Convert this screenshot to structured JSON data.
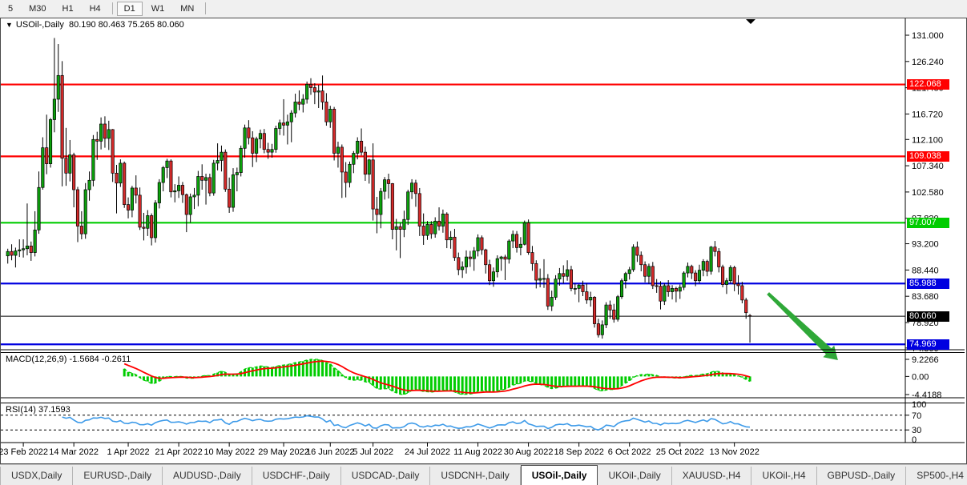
{
  "toolbar": {
    "timeframes": [
      "5",
      "M30",
      "H1",
      "H4",
      "D1",
      "W1",
      "MN"
    ],
    "active_timeframe": "D1"
  },
  "chart": {
    "symbol_title": "USOil-,Daily",
    "ohlc_text": "80.190 80.463 75.265 80.060",
    "dropdown_icon": "▼"
  },
  "macd": {
    "label": "MACD(12,26,9)",
    "values_text": "-1.5684 -0.2611",
    "axis_labels": [
      "9.2266",
      "0.00",
      "-4.4188"
    ],
    "fast": 12,
    "slow": 26,
    "signal": 9
  },
  "rsi": {
    "label": "RSI(14)",
    "value_text": "37.1593",
    "axis_labels": [
      "100",
      "70",
      "30",
      "0"
    ],
    "levels": [
      70,
      30
    ],
    "period": 14
  },
  "tabs": {
    "items": [
      "USDX,Daily",
      "EURUSD-,Daily",
      "AUDUSD-,Daily",
      "USDCHF-,Daily",
      "USDCAD-,Daily",
      "USDCNH-,Daily",
      "USOil-,Daily",
      "UKOil-,Daily",
      "XAUUSD-,H4",
      "UKOil-,H4",
      "GBPUSD-,Daily",
      "SP500-,H4"
    ],
    "active": "USOil-,Daily",
    "scroll_left_icon": "◄",
    "scroll_right_icon": "►"
  },
  "colors": {
    "bull": "#0ca10c",
    "bear": "#d42a2a",
    "wick": "#000000",
    "macd_hist": "#00cc00",
    "macd_line": "#00cc00",
    "macd_signal": "#ff0000",
    "rsi_line": "#3e9be9",
    "arrow": "#2fa838",
    "level_red": "#ff0000",
    "level_green": "#00cc00",
    "level_blue": "#0000e0",
    "level_black": "#000000"
  },
  "chart_data": {
    "type": "candlestick",
    "symbol": "USOil",
    "timeframe": "Daily",
    "current_bar": {
      "open": 80.19,
      "high": 80.463,
      "low": 75.265,
      "close": 80.06
    },
    "y_ticks": [
      "131.000",
      "126.240",
      "121.480",
      "116.720",
      "112.100",
      "107.340",
      "102.580",
      "97.820",
      "93.200",
      "88.440",
      "83.680",
      "78.920",
      "74.300"
    ],
    "horizontal_levels": [
      {
        "price": 122.068,
        "label": "122.068",
        "color_key": "level_red"
      },
      {
        "price": 109.038,
        "label": "109.038",
        "color_key": "level_red"
      },
      {
        "price": 97.007,
        "label": "97.007",
        "color_key": "level_green"
      },
      {
        "price": 85.988,
        "label": "85.988",
        "color_key": "level_blue"
      },
      {
        "price": 80.06,
        "label": "80.060",
        "color_key": "level_black"
      },
      {
        "price": 74.969,
        "label": "74.969",
        "color_key": "level_blue"
      }
    ],
    "x_labels": [
      {
        "text": "23 Feb 2022",
        "index": 4
      },
      {
        "text": "14 Mar 2022",
        "index": 17
      },
      {
        "text": "1 Apr 2022",
        "index": 31
      },
      {
        "text": "21 Apr 2022",
        "index": 44
      },
      {
        "text": "10 May 2022",
        "index": 57
      },
      {
        "text": "29 May 2022",
        "index": 71
      },
      {
        "text": "16 Jun 2022",
        "index": 83
      },
      {
        "text": "5 Jul 2022",
        "index": 94
      },
      {
        "text": "24 Jul 2022",
        "index": 108
      },
      {
        "text": "11 Aug 2022",
        "index": 121
      },
      {
        "text": "30 Aug 2022",
        "index": 134
      },
      {
        "text": "18 Sep 2022",
        "index": 147
      },
      {
        "text": "6 Oct 2022",
        "index": 160
      },
      {
        "text": "25 Oct 2022",
        "index": 173
      },
      {
        "text": "13 Nov 2022",
        "index": 187
      }
    ],
    "arrow_annotation": {
      "x1_bar": 196,
      "price1": 84.2,
      "x2_bar": 214,
      "price2": 72.1
    },
    "candles": [
      [
        91.0,
        92.3,
        89.6,
        91.8
      ],
      [
        91.8,
        93.1,
        90.2,
        91.1
      ],
      [
        91.1,
        92.5,
        88.9,
        91.9
      ],
      [
        91.9,
        94.0,
        90.8,
        92.1
      ],
      [
        92.1,
        94.0,
        90.7,
        92.3
      ],
      [
        92.3,
        100.5,
        91.1,
        92.8
      ],
      [
        92.8,
        93.6,
        90.1,
        91.6
      ],
      [
        91.6,
        99.1,
        90.9,
        95.7
      ],
      [
        95.7,
        106.3,
        95.0,
        103.4
      ],
      [
        103.4,
        112.5,
        103.0,
        110.6
      ],
      [
        110.6,
        116.6,
        105.8,
        107.7
      ],
      [
        107.7,
        116.0,
        107.0,
        115.7
      ],
      [
        115.7,
        130.5,
        113.4,
        119.4
      ],
      [
        119.4,
        129.4,
        117.1,
        123.7
      ],
      [
        123.7,
        126.3,
        103.6,
        108.7
      ],
      [
        108.7,
        114.2,
        103.7,
        106.0
      ],
      [
        106.0,
        112.0,
        104.5,
        109.3
      ],
      [
        109.3,
        109.7,
        99.8,
        103.0
      ],
      [
        103.0,
        103.5,
        93.5,
        96.4
      ],
      [
        96.4,
        99.1,
        94.0,
        95.0
      ],
      [
        95.0,
        104.2,
        94.1,
        103.0
      ],
      [
        103.0,
        106.3,
        101.0,
        104.7
      ],
      [
        104.7,
        112.9,
        103.6,
        112.1
      ],
      [
        112.1,
        113.5,
        108.4,
        111.8
      ],
      [
        111.8,
        116.1,
        110.3,
        114.9
      ],
      [
        114.9,
        116.3,
        110.6,
        112.3
      ],
      [
        112.3,
        115.5,
        110.2,
        113.9
      ],
      [
        113.9,
        114.0,
        104.4,
        106.0
      ],
      [
        106.0,
        107.5,
        98.7,
        104.2
      ],
      [
        104.2,
        108.5,
        103.5,
        107.8
      ],
      [
        107.8,
        108.1,
        99.7,
        100.3
      ],
      [
        100.3,
        101.6,
        97.8,
        99.3
      ],
      [
        99.3,
        103.7,
        98.0,
        103.3
      ],
      [
        103.3,
        105.6,
        100.5,
        102.0
      ],
      [
        102.0,
        103.4,
        95.7,
        96.2
      ],
      [
        96.2,
        98.8,
        93.8,
        96.0
      ],
      [
        96.0,
        99.3,
        94.6,
        98.3
      ],
      [
        98.3,
        98.7,
        92.9,
        94.3
      ],
      [
        94.3,
        101.1,
        93.4,
        100.6
      ],
      [
        100.6,
        104.9,
        99.6,
        104.3
      ],
      [
        104.3,
        107.3,
        102.7,
        107.0
      ],
      [
        107.0,
        108.6,
        105.1,
        108.2
      ],
      [
        108.2,
        108.5,
        101.6,
        102.6
      ],
      [
        102.6,
        104.0,
        100.7,
        102.8
      ],
      [
        102.8,
        105.4,
        101.5,
        103.8
      ],
      [
        103.8,
        104.4,
        100.6,
        102.1
      ],
      [
        102.1,
        102.3,
        95.3,
        98.5
      ],
      [
        98.5,
        102.3,
        97.0,
        101.7
      ],
      [
        101.7,
        103.3,
        99.5,
        102.0
      ],
      [
        102.0,
        106.4,
        100.0,
        105.4
      ],
      [
        105.4,
        107.6,
        103.0,
        104.7
      ],
      [
        104.7,
        105.9,
        100.3,
        105.2
      ],
      [
        105.2,
        105.9,
        101.8,
        102.4
      ],
      [
        102.4,
        108.4,
        101.9,
        107.8
      ],
      [
        107.8,
        111.4,
        106.5,
        108.3
      ],
      [
        108.3,
        111.0,
        106.3,
        109.8
      ],
      [
        109.8,
        110.3,
        102.6,
        103.1
      ],
      [
        103.1,
        105.2,
        98.8,
        99.8
      ],
      [
        99.8,
        106.9,
        99.0,
        105.7
      ],
      [
        105.7,
        107.0,
        102.7,
        106.1
      ],
      [
        106.1,
        111.0,
        105.4,
        110.5
      ],
      [
        110.5,
        114.8,
        108.8,
        114.2
      ],
      [
        114.2,
        115.6,
        111.2,
        112.4
      ],
      [
        112.4,
        113.6,
        107.1,
        109.6
      ],
      [
        109.6,
        112.6,
        108.0,
        112.2
      ],
      [
        112.2,
        113.9,
        110.5,
        113.2
      ],
      [
        113.2,
        114.0,
        109.6,
        110.3
      ],
      [
        110.3,
        111.5,
        108.6,
        109.8
      ],
      [
        109.8,
        111.3,
        108.8,
        110.3
      ],
      [
        110.3,
        114.6,
        109.7,
        114.1
      ],
      [
        114.1,
        115.7,
        112.9,
        115.1
      ],
      [
        115.1,
        119.4,
        112.8,
        114.7
      ],
      [
        114.7,
        116.6,
        111.2,
        115.3
      ],
      [
        115.3,
        117.4,
        111.6,
        116.9
      ],
      [
        116.9,
        120.4,
        116.1,
        118.9
      ],
      [
        118.9,
        121.0,
        117.4,
        118.5
      ],
      [
        118.5,
        120.3,
        117.0,
        119.4
      ],
      [
        119.4,
        122.6,
        118.6,
        122.1
      ],
      [
        122.1,
        123.2,
        120.2,
        121.5
      ],
      [
        121.5,
        122.3,
        118.5,
        120.7
      ],
      [
        120.7,
        122.0,
        117.8,
        120.9
      ],
      [
        120.9,
        123.7,
        117.5,
        118.9
      ],
      [
        118.9,
        120.5,
        114.6,
        115.3
      ],
      [
        115.3,
        118.2,
        114.2,
        117.6
      ],
      [
        117.6,
        118.0,
        108.3,
        109.6
      ],
      [
        109.6,
        111.7,
        107.0,
        110.7
      ],
      [
        110.7,
        111.2,
        101.5,
        106.2
      ],
      [
        106.2,
        108.0,
        101.6,
        104.3
      ],
      [
        104.3,
        108.1,
        103.4,
        107.6
      ],
      [
        107.6,
        110.0,
        106.0,
        109.6
      ],
      [
        109.6,
        112.5,
        108.5,
        111.8
      ],
      [
        111.8,
        114.1,
        109.2,
        109.8
      ],
      [
        109.8,
        110.8,
        104.6,
        105.8
      ],
      [
        105.8,
        108.6,
        104.1,
        108.4
      ],
      [
        108.4,
        111.4,
        97.4,
        99.5
      ],
      [
        99.5,
        101.7,
        95.1,
        98.5
      ],
      [
        98.5,
        103.3,
        96.0,
        102.7
      ],
      [
        102.7,
        105.3,
        101.2,
        104.8
      ],
      [
        104.8,
        105.9,
        101.4,
        104.1
      ],
      [
        104.1,
        104.2,
        94.0,
        95.8
      ],
      [
        95.8,
        97.7,
        92.0,
        96.3
      ],
      [
        96.3,
        97.0,
        90.6,
        95.8
      ],
      [
        95.8,
        99.2,
        94.4,
        97.6
      ],
      [
        97.6,
        103.0,
        96.6,
        102.6
      ],
      [
        102.6,
        104.9,
        101.3,
        104.2
      ],
      [
        104.2,
        104.8,
        99.9,
        102.3
      ],
      [
        102.3,
        103.3,
        94.6,
        96.4
      ],
      [
        96.4,
        98.7,
        93.0,
        94.7
      ],
      [
        94.7,
        97.3,
        93.9,
        96.7
      ],
      [
        96.7,
        97.3,
        94.1,
        95.0
      ],
      [
        95.0,
        98.0,
        94.3,
        97.3
      ],
      [
        97.3,
        99.8,
        95.6,
        96.4
      ],
      [
        96.4,
        99.4,
        95.2,
        98.6
      ],
      [
        98.6,
        98.9,
        92.4,
        93.9
      ],
      [
        93.9,
        95.5,
        92.3,
        94.4
      ],
      [
        94.4,
        95.9,
        90.1,
        90.7
      ],
      [
        90.7,
        91.6,
        87.5,
        88.5
      ],
      [
        88.5,
        90.0,
        87.0,
        89.0
      ],
      [
        89.0,
        92.0,
        87.8,
        90.8
      ],
      [
        90.8,
        91.9,
        89.0,
        90.5
      ],
      [
        90.5,
        92.6,
        88.3,
        91.9
      ],
      [
        91.9,
        94.9,
        90.9,
        94.3
      ],
      [
        94.3,
        94.7,
        91.2,
        92.1
      ],
      [
        92.1,
        92.3,
        87.8,
        89.4
      ],
      [
        89.4,
        90.3,
        85.7,
        86.5
      ],
      [
        86.5,
        88.9,
        85.4,
        88.1
      ],
      [
        88.1,
        91.1,
        87.1,
        90.5
      ],
      [
        90.5,
        91.0,
        88.3,
        90.8
      ],
      [
        90.8,
        91.2,
        86.6,
        90.4
      ],
      [
        90.4,
        94.0,
        89.6,
        93.7
      ],
      [
        93.7,
        95.6,
        92.4,
        94.9
      ],
      [
        94.9,
        95.5,
        91.6,
        92.5
      ],
      [
        92.5,
        94.4,
        91.1,
        93.1
      ],
      [
        93.1,
        97.4,
        92.9,
        97.0
      ],
      [
        97.0,
        97.6,
        91.2,
        91.6
      ],
      [
        91.6,
        92.8,
        88.3,
        89.6
      ],
      [
        89.6,
        90.2,
        85.1,
        86.6
      ],
      [
        86.6,
        88.7,
        85.3,
        86.9
      ],
      [
        86.9,
        90.4,
        85.2,
        86.9
      ],
      [
        86.9,
        87.7,
        81.2,
        81.9
      ],
      [
        81.9,
        84.7,
        81.0,
        83.5
      ],
      [
        83.5,
        87.5,
        83.0,
        86.8
      ],
      [
        86.8,
        88.8,
        85.6,
        87.8
      ],
      [
        87.8,
        89.3,
        86.0,
        87.3
      ],
      [
        87.3,
        90.2,
        86.5,
        88.5
      ],
      [
        88.5,
        89.2,
        84.6,
        85.1
      ],
      [
        85.1,
        86.0,
        84.0,
        85.1
      ],
      [
        85.1,
        85.9,
        82.6,
        85.7
      ],
      [
        85.7,
        86.5,
        83.7,
        84.5
      ],
      [
        84.5,
        86.0,
        82.3,
        83.0
      ],
      [
        83.0,
        84.5,
        81.8,
        83.5
      ],
      [
        83.5,
        83.7,
        78.0,
        78.7
      ],
      [
        78.7,
        79.6,
        76.2,
        76.7
      ],
      [
        76.7,
        79.3,
        76.0,
        78.5
      ],
      [
        78.5,
        82.6,
        77.9,
        82.1
      ],
      [
        82.1,
        82.9,
        79.6,
        81.2
      ],
      [
        81.2,
        82.3,
        78.9,
        79.5
      ],
      [
        79.5,
        83.9,
        79.1,
        83.6
      ],
      [
        83.6,
        86.9,
        83.2,
        86.5
      ],
      [
        86.5,
        88.1,
        85.1,
        87.8
      ],
      [
        87.8,
        89.0,
        86.7,
        88.5
      ],
      [
        88.5,
        93.1,
        88.1,
        92.6
      ],
      [
        92.6,
        93.6,
        89.9,
        91.1
      ],
      [
        91.1,
        91.8,
        88.2,
        89.4
      ],
      [
        89.4,
        90.0,
        86.2,
        87.3
      ],
      [
        87.3,
        89.6,
        85.9,
        89.1
      ],
      [
        89.1,
        89.9,
        85.0,
        85.6
      ],
      [
        85.6,
        86.8,
        84.3,
        85.5
      ],
      [
        85.5,
        86.4,
        81.3,
        82.8
      ],
      [
        82.8,
        86.0,
        82.1,
        85.6
      ],
      [
        85.6,
        86.6,
        83.6,
        84.5
      ],
      [
        84.5,
        85.7,
        83.1,
        85.1
      ],
      [
        85.1,
        85.4,
        82.6,
        84.6
      ],
      [
        84.6,
        85.8,
        83.2,
        85.3
      ],
      [
        85.3,
        88.2,
        84.8,
        87.9
      ],
      [
        87.9,
        89.8,
        87.1,
        89.1
      ],
      [
        89.1,
        89.4,
        86.8,
        87.9
      ],
      [
        87.9,
        88.4,
        85.5,
        86.5
      ],
      [
        86.5,
        89.4,
        86.0,
        88.4
      ],
      [
        88.4,
        90.4,
        87.3,
        90.0
      ],
      [
        90.0,
        90.3,
        87.3,
        88.2
      ],
      [
        88.2,
        92.8,
        87.6,
        92.6
      ],
      [
        92.6,
        93.7,
        90.9,
        91.8
      ],
      [
        91.8,
        92.4,
        88.0,
        89.0
      ],
      [
        89.0,
        89.4,
        85.3,
        85.8
      ],
      [
        85.8,
        87.0,
        84.1,
        86.5
      ],
      [
        86.5,
        89.3,
        86.0,
        88.9
      ],
      [
        88.9,
        89.2,
        84.6,
        85.9
      ],
      [
        85.9,
        87.5,
        84.0,
        85.6
      ],
      [
        85.6,
        86.3,
        82.4,
        83.0
      ],
      [
        83.0,
        83.4,
        79.6,
        80.7
      ],
      [
        80.19,
        80.46,
        75.27,
        80.06
      ]
    ]
  }
}
